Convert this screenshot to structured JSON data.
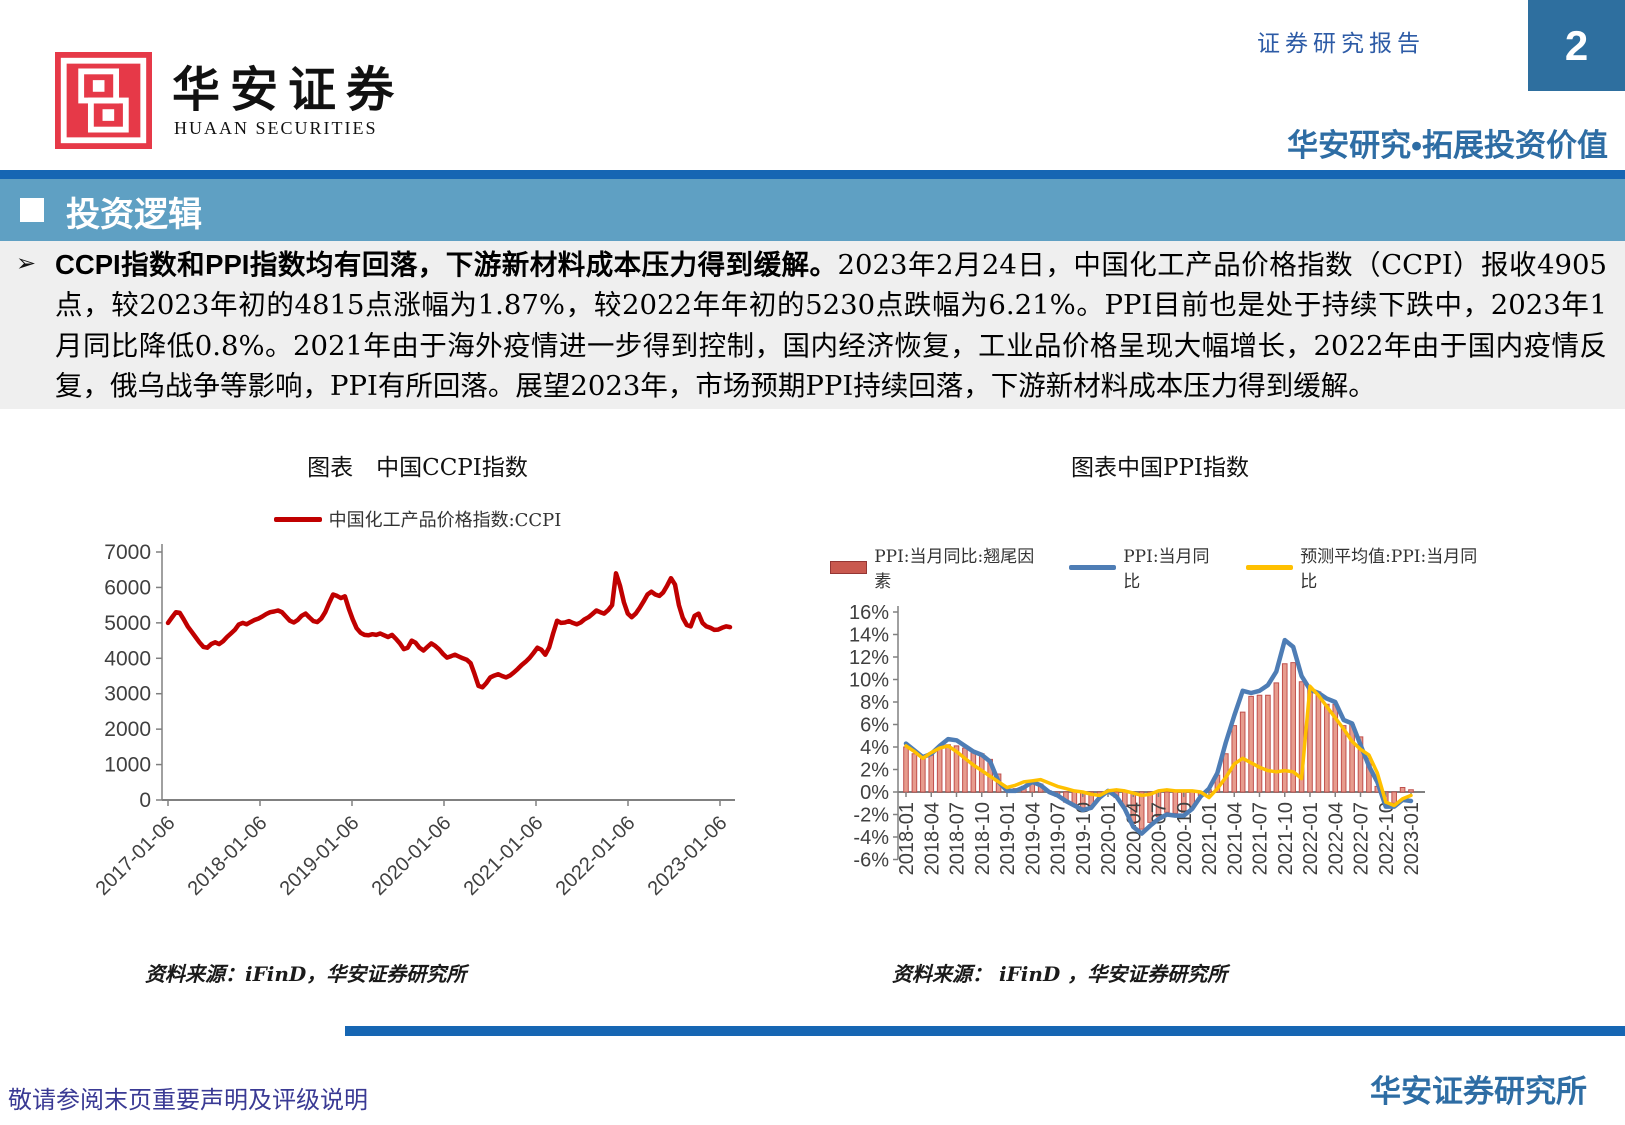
{
  "page": {
    "number": "2"
  },
  "header": {
    "logo_chinese": "华安证券",
    "logo_english": "HUAAN SECURITIES",
    "report_type": "证券研究报告",
    "slogan": "华安研究•拓展投资价值"
  },
  "section": {
    "title": "投资逻辑"
  },
  "body": {
    "bullet": "➢",
    "bold_lead": "CCPI指数和PPI指数均有回落，下游新材料成本压力得到缓解。",
    "text": "2023年2月24日，中国化工产品价格指数（CCPI）报收4905点，较2023年初的4815点涨幅为1.87%，较2022年年初的5230点跌幅为6.21%。PPI目前也是处于持续下跌中，2023年1月同比降低0.8%。2021年由于海外疫情进一步得到控制，国内经济恢复，工业品价格呈现大幅增长，2022年由于国内疫情反复，俄乌战争等影响，PPI有所回落。展望2023年，市场预期PPI持续回落，下游新材料成本压力得到缓解。"
  },
  "footer": {
    "disclaimer": "敬请参阅末页重要声明及评级说明",
    "institute": "华安证券研究所"
  },
  "colors": {
    "accent_blue": "#1666B3",
    "band_blue": "#5FA0C3",
    "title_blue": "#2E6DA4",
    "page_box_blue": "#2E6F9F",
    "logo_red": "#E63948",
    "ccpi_red": "#C00000",
    "bar_fill": "#E79C8E",
    "bar_stroke": "#C0504D",
    "ppi_blue": "#4E7DB5",
    "forecast_yellow": "#FFC000",
    "disclaimer_blue": "#3A3A94"
  },
  "chart_data": [
    {
      "type": "line",
      "title": "图表　中国CCPI指数",
      "source": "资料来源：iFinD，华安证券研究所",
      "ylim": [
        0,
        7000
      ],
      "y_ticks": [
        7000,
        6000,
        5000,
        4000,
        3000,
        2000,
        1000,
        0
      ],
      "x_ticks": [
        "2017-01-06",
        "2018-01-06",
        "2019-01-06",
        "2020-01-06",
        "2021-01-06",
        "2022-01-06",
        "2023-01-06"
      ],
      "series": [
        {
          "name": "中国化工产品价格指数:CCPI",
          "color": "#C00000",
          "values": [
            5000,
            5150,
            5300,
            5280,
            5100,
            4900,
            4750,
            4600,
            4450,
            4320,
            4300,
            4400,
            4450,
            4400,
            4480,
            4600,
            4700,
            4800,
            4950,
            5000,
            4960,
            5020,
            5080,
            5120,
            5180,
            5250,
            5300,
            5320,
            5350,
            5300,
            5180,
            5060,
            5010,
            5080,
            5200,
            5260,
            5150,
            5050,
            5020,
            5120,
            5300,
            5560,
            5800,
            5760,
            5700,
            5750,
            5400,
            5100,
            4850,
            4720,
            4660,
            4650,
            4680,
            4660,
            4700,
            4650,
            4600,
            4660,
            4550,
            4420,
            4260,
            4300,
            4500,
            4440,
            4300,
            4220,
            4320,
            4420,
            4350,
            4250,
            4120,
            4020,
            4060,
            4100,
            4050,
            4000,
            3960,
            3860,
            3560,
            3220,
            3180,
            3300,
            3460,
            3510,
            3550,
            3500,
            3460,
            3510,
            3600,
            3700,
            3810,
            3900,
            4010,
            4150,
            4300,
            4240,
            4100,
            4310,
            4700,
            5060,
            5000,
            5010,
            5050,
            5000,
            4960,
            5010,
            5100,
            5160,
            5250,
            5350,
            5300,
            5260,
            5360,
            5500,
            6400,
            6050,
            5580,
            5260,
            5160,
            5260,
            5420,
            5600,
            5800,
            5880,
            5800,
            5760,
            5860,
            6050,
            6260,
            6080,
            5500,
            5140,
            4940,
            4900,
            5200,
            5260,
            5000,
            4900,
            4860,
            4800,
            4810,
            4860,
            4900,
            4880
          ]
        }
      ]
    },
    {
      "type": "combo",
      "title": "图表中国PPI指数",
      "source": "资料来源： iFinD ，华安证券研究所",
      "ylim": [
        -6,
        16
      ],
      "y_ticks": [
        16,
        14,
        12,
        10,
        8,
        6,
        4,
        2,
        0,
        -2,
        -4,
        -6
      ],
      "x_ticks": [
        "2018-01",
        "2018-04",
        "2018-07",
        "2018-10",
        "2019-01",
        "2019-04",
        "2019-07",
        "2019-10",
        "2020-01",
        "2020-04",
        "2020-07",
        "2020-10",
        "2021-01",
        "2021-04",
        "2021-07",
        "2021-10",
        "2022-01",
        "2022-04",
        "2022-07",
        "2022-10",
        "2023-01"
      ],
      "tick_every": 3,
      "bar_series": {
        "name": "PPI:当月同比:翘尾因素",
        "fill": "#E79C8E",
        "stroke": "#C0504D",
        "values": [
          4.0,
          3.4,
          3.0,
          3.5,
          4.0,
          4.2,
          4.1,
          3.9,
          3.6,
          3.4,
          2.9,
          1.6,
          0.4,
          0.3,
          0.5,
          0.9,
          0.7,
          0.1,
          -0.4,
          -0.9,
          -1.1,
          -1.4,
          -1.2,
          -0.4,
          0.0,
          -0.5,
          -1.3,
          -2.8,
          -3.3,
          -2.7,
          -2.2,
          -1.8,
          -1.9,
          -1.8,
          -1.3,
          -0.3,
          0.2,
          1.5,
          3.4,
          5.9,
          7.1,
          8.5,
          8.6,
          8.6,
          9.7,
          11.4,
          11.5,
          9.8,
          9.3,
          8.9,
          7.8,
          7.8,
          5.9,
          6.0,
          4.9,
          3.0,
          0.5,
          -0.9,
          -1.0,
          0.4,
          0.2
        ]
      },
      "line_series": [
        {
          "name": "PPI:当月同比",
          "color": "#4E7DB5",
          "values": [
            4.3,
            3.7,
            3.1,
            3.4,
            4.1,
            4.7,
            4.6,
            4.1,
            3.6,
            3.3,
            2.7,
            0.9,
            0.1,
            0.1,
            0.4,
            0.9,
            0.6,
            0.0,
            -0.3,
            -0.8,
            -1.2,
            -1.6,
            -1.4,
            -0.5,
            0.1,
            -0.4,
            -1.5,
            -3.1,
            -3.7,
            -3.0,
            -2.4,
            -2.0,
            -2.1,
            -2.1,
            -1.5,
            -0.4,
            0.3,
            1.7,
            4.4,
            6.8,
            9.0,
            8.8,
            9.0,
            9.5,
            10.7,
            13.5,
            12.9,
            10.3,
            9.1,
            8.8,
            8.3,
            8.0,
            6.4,
            6.1,
            4.2,
            2.3,
            0.9,
            -1.3,
            -1.3,
            -0.7,
            -0.8
          ]
        },
        {
          "name": "预测平均值:PPI:当月同比",
          "color": "#FFC000",
          "values": [
            4.1,
            3.6,
            3.0,
            3.5,
            3.9,
            4.1,
            3.6,
            3.0,
            2.4,
            1.9,
            1.4,
            0.9,
            0.4,
            0.6,
            0.9,
            1.0,
            1.1,
            0.8,
            0.5,
            0.3,
            0.1,
            0.0,
            -0.2,
            -0.3,
            0.1,
            0.2,
            0.1,
            -0.1,
            -0.3,
            -0.2,
            0.1,
            0.2,
            0.1,
            0.1,
            0.1,
            0.0,
            -0.5,
            0.3,
            1.3,
            2.5,
            3.0,
            2.6,
            2.2,
            1.9,
            1.8,
            1.9,
            1.8,
            1.2,
            9.4,
            8.6,
            7.6,
            6.6,
            5.6,
            4.5,
            3.8,
            3.3,
            1.7,
            -0.9,
            -1.2,
            -0.6,
            -0.3
          ]
        }
      ]
    }
  ]
}
